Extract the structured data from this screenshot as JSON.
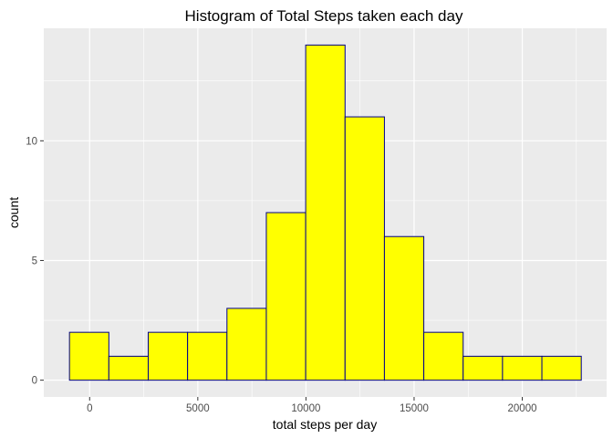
{
  "chart_data": {
    "type": "bar",
    "title": "Histogram of Total Steps taken each day",
    "xlabel": "total steps per day",
    "ylabel": "count",
    "bins": [
      {
        "x0": -932,
        "x1": 888,
        "count": 2
      },
      {
        "x0": 888,
        "x1": 2708,
        "count": 1
      },
      {
        "x0": 2708,
        "x1": 4528,
        "count": 2
      },
      {
        "x0": 4528,
        "x1": 6348,
        "count": 2
      },
      {
        "x0": 6348,
        "x1": 8168,
        "count": 3
      },
      {
        "x0": 8168,
        "x1": 9988,
        "count": 7
      },
      {
        "x0": 9988,
        "x1": 11808,
        "count": 14
      },
      {
        "x0": 11808,
        "x1": 13628,
        "count": 11
      },
      {
        "x0": 13628,
        "x1": 15448,
        "count": 6
      },
      {
        "x0": 15448,
        "x1": 17268,
        "count": 2
      },
      {
        "x0": 17268,
        "x1": 19088,
        "count": 1
      },
      {
        "x0": 19088,
        "x1": 20908,
        "count": 1
      },
      {
        "x0": 20908,
        "x1": 22728,
        "count": 1
      }
    ],
    "xlim": [
      -2120,
      23900
    ],
    "ylim": [
      -0.7,
      14.7
    ],
    "x_ticks": [
      0,
      5000,
      10000,
      15000,
      20000
    ],
    "x_tick_labels": [
      "0",
      "5000",
      "10000",
      "15000",
      "20000"
    ],
    "y_ticks": [
      0,
      5,
      10
    ],
    "y_tick_labels": [
      "0",
      "5",
      "10"
    ],
    "grid": true,
    "colors": {
      "panel_background": "#ebebeb",
      "grid_major": "#ffffff",
      "bar_fill": "#ffff00",
      "bar_outline": "#00008b",
      "tick": "#333333"
    }
  }
}
